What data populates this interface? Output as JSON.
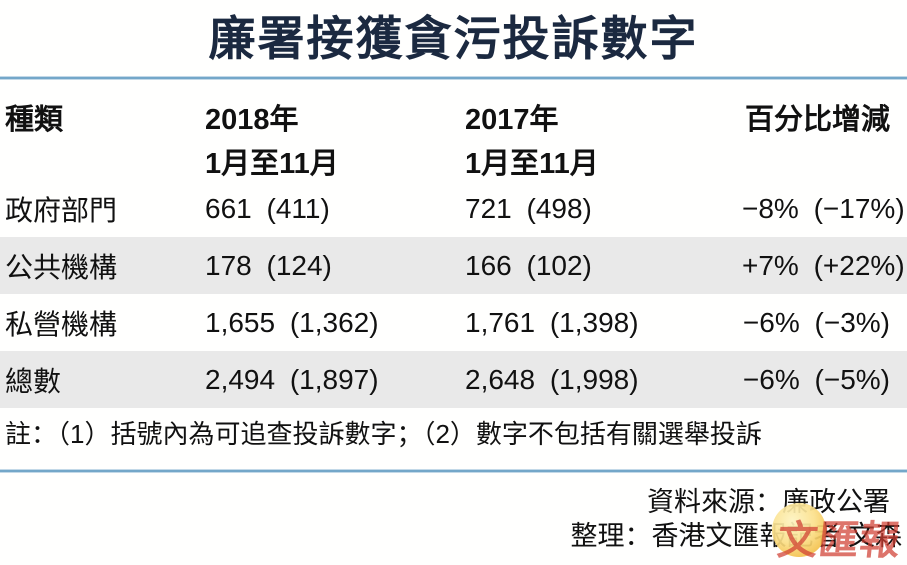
{
  "title": "廉署接獲貪污投訴數字",
  "table": {
    "headers": {
      "category": "種類",
      "col2018_year": "2018年",
      "col2018_period": "1月至11月",
      "col2017_year": "2017年",
      "col2017_period": "1月至11月",
      "change": "百分比增減"
    },
    "rows": [
      {
        "category": "政府部門",
        "y2018": "661 (411)",
        "y2017": "721 (498)",
        "change": "−8% (−17%)"
      },
      {
        "category": "公共機構",
        "y2018": "178 (124)",
        "y2017": "166 (102)",
        "change": "+7% (+22%)"
      },
      {
        "category": "私營機構",
        "y2018": "1,655 (1,362)",
        "y2017": "1,761 (1,398)",
        "change": "−6% (−3%)"
      },
      {
        "category": "總數",
        "y2018": "2,494 (1,897)",
        "y2017": "2,648 (1,998)",
        "change": "−6% (−5%)"
      }
    ]
  },
  "note": "註：（1）括號內為可追查投訴數字；（2）數字不包括有關選舉投訴",
  "source": "資料來源：廉政公署",
  "credit": "整理：香港文匯報記者 文森",
  "watermark_text": "文匯報",
  "colors": {
    "title_navy": "#1b2940",
    "rule_blue": "#74a7c9",
    "row_alt_gray": "#e9e9e9",
    "body_text": "#111111",
    "logo_red": "#d03e32",
    "logo_gold": "#f2bd45",
    "background": "#fffffe"
  },
  "chart_data": {
    "type": "table",
    "title": "廉署接獲貪污投訴數字",
    "columns": [
      "種類",
      "2018年 1月至11月",
      "2017年 1月至11月",
      "百分比增減"
    ],
    "rows": [
      [
        "政府部門",
        "661 (411)",
        "721 (498)",
        "−8% (−17%)"
      ],
      [
        "公共機構",
        "178 (124)",
        "166 (102)",
        "+7% (+22%)"
      ],
      [
        "私營機構",
        "1,655 (1,362)",
        "1,761 (1,398)",
        "−6% (−3%)"
      ],
      [
        "總數",
        "2,494 (1,897)",
        "2,648 (1,998)",
        "−6% (−5%)"
      ]
    ],
    "values_2018": {
      "政府部門": 661,
      "公共機構": 178,
      "私營機構": 1655,
      "總數": 2494
    },
    "traceable_2018": {
      "政府部門": 411,
      "公共機構": 124,
      "私營機構": 1362,
      "總數": 1897
    },
    "values_2017": {
      "政府部門": 721,
      "公共機構": 166,
      "私營機構": 1761,
      "總數": 2648
    },
    "traceable_2017": {
      "政府部門": 498,
      "公共機構": 102,
      "私營機構": 1398,
      "總數": 1998
    },
    "pct_change": {
      "政府部門": -8,
      "公共機構": 7,
      "私營機構": -6,
      "總數": -6
    },
    "pct_change_traceable": {
      "政府部門": -17,
      "公共機構": 22,
      "私營機構": -3,
      "總數": -5
    },
    "note": "括號內為可追查投訴數字；數字不包括有關選舉投訴",
    "source": "廉政公署"
  }
}
